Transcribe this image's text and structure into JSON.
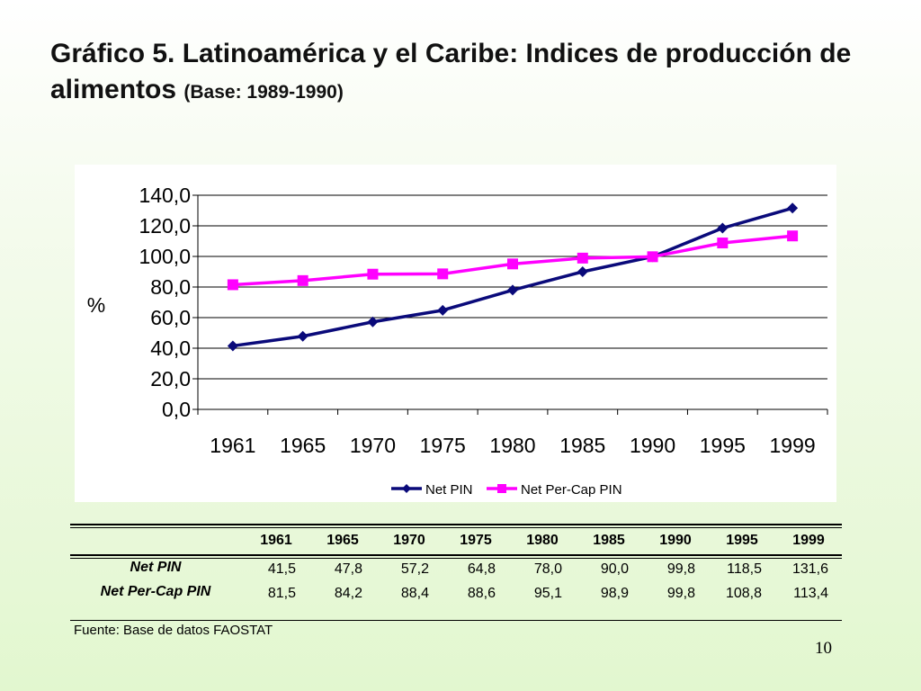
{
  "title": {
    "main": "Gráfico 5. Latinoamérica y el Caribe: Indices de producción de alimentos",
    "base": "(Base: 1989-1990)"
  },
  "chart_data": {
    "type": "line",
    "categories": [
      "1961",
      "1965",
      "1970",
      "1975",
      "1980",
      "1985",
      "1990",
      "1995",
      "1999"
    ],
    "series": [
      {
        "name": "Net PIN",
        "values": [
          41.5,
          47.8,
          57.2,
          64.8,
          78.0,
          90.0,
          99.8,
          118.5,
          131.6
        ],
        "color": "#0a0a7a",
        "marker": "diamond"
      },
      {
        "name": "Net Per-Cap PIN",
        "values": [
          81.5,
          84.2,
          88.4,
          88.6,
          95.1,
          98.9,
          99.8,
          108.8,
          113.4
        ],
        "color": "#ff00ff",
        "marker": "square"
      }
    ],
    "ylabel": "%",
    "xlabel": "",
    "ylim": [
      0,
      140
    ],
    "yticks": [
      "0,0",
      "20,0",
      "40,0",
      "60,0",
      "80,0",
      "100,0",
      "120,0",
      "140,0"
    ],
    "grid": true,
    "legend_position": "bottom"
  },
  "table": {
    "headers": [
      "1961",
      "1965",
      "1970",
      "1975",
      "1980",
      "1985",
      "1990",
      "1995",
      "1999"
    ],
    "rows": [
      {
        "label": "Net PIN",
        "values": [
          "41,5",
          "47,8",
          "57,2",
          "64,8",
          "78,0",
          "90,0",
          "99,8",
          "118,5",
          "131,6"
        ]
      },
      {
        "label": "Net Per-Cap PIN",
        "values": [
          "81,5",
          "84,2",
          "88,4",
          "88,6",
          "95,1",
          "98,9",
          "99,8",
          "108,8",
          "113,4"
        ]
      }
    ]
  },
  "source": "Fuente: Base de datos FAOSTAT",
  "page_number": "10"
}
